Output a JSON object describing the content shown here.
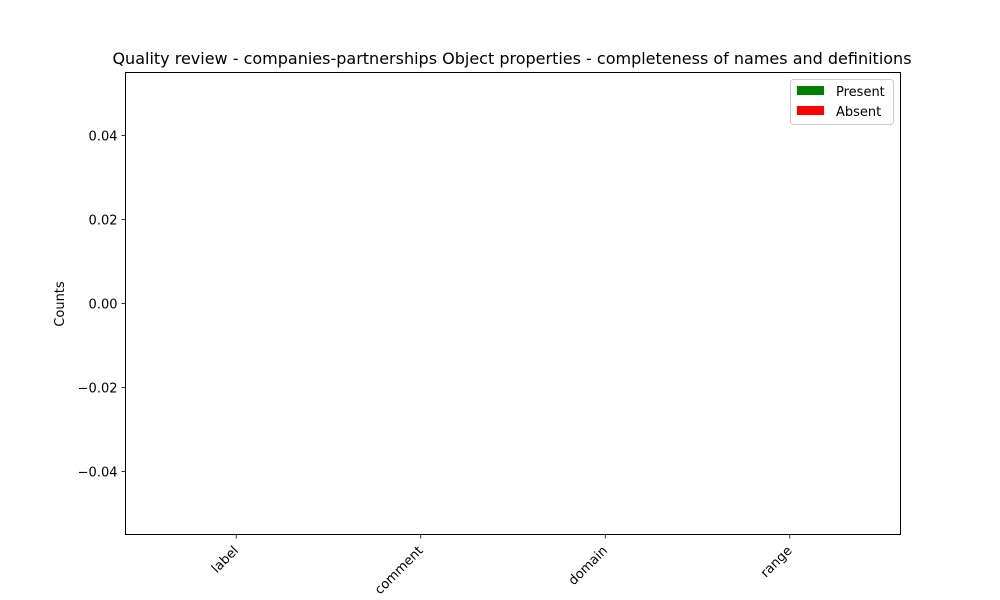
{
  "chart_data": {
    "type": "bar",
    "title": "Quality review - companies-partnerships Object properties - completeness of names and definitions",
    "xlabel": "",
    "ylabel": "Counts",
    "categories": [
      "label",
      "comment",
      "domain",
      "range"
    ],
    "series": [
      {
        "name": "Present",
        "color": "#008000",
        "values": [
          0,
          0,
          0,
          0
        ]
      },
      {
        "name": "Absent",
        "color": "#ff0000",
        "values": [
          0,
          0,
          0,
          0
        ]
      }
    ],
    "ylim": [
      -0.055,
      0.055
    ],
    "yticks": [
      0.04,
      0.02,
      0.0,
      -0.02,
      -0.04
    ],
    "ytick_labels": [
      "0.04",
      "0.02",
      "0.00",
      "−0.02",
      "−0.04"
    ],
    "stacked": true,
    "grid": false,
    "legend_position": "top-right"
  }
}
